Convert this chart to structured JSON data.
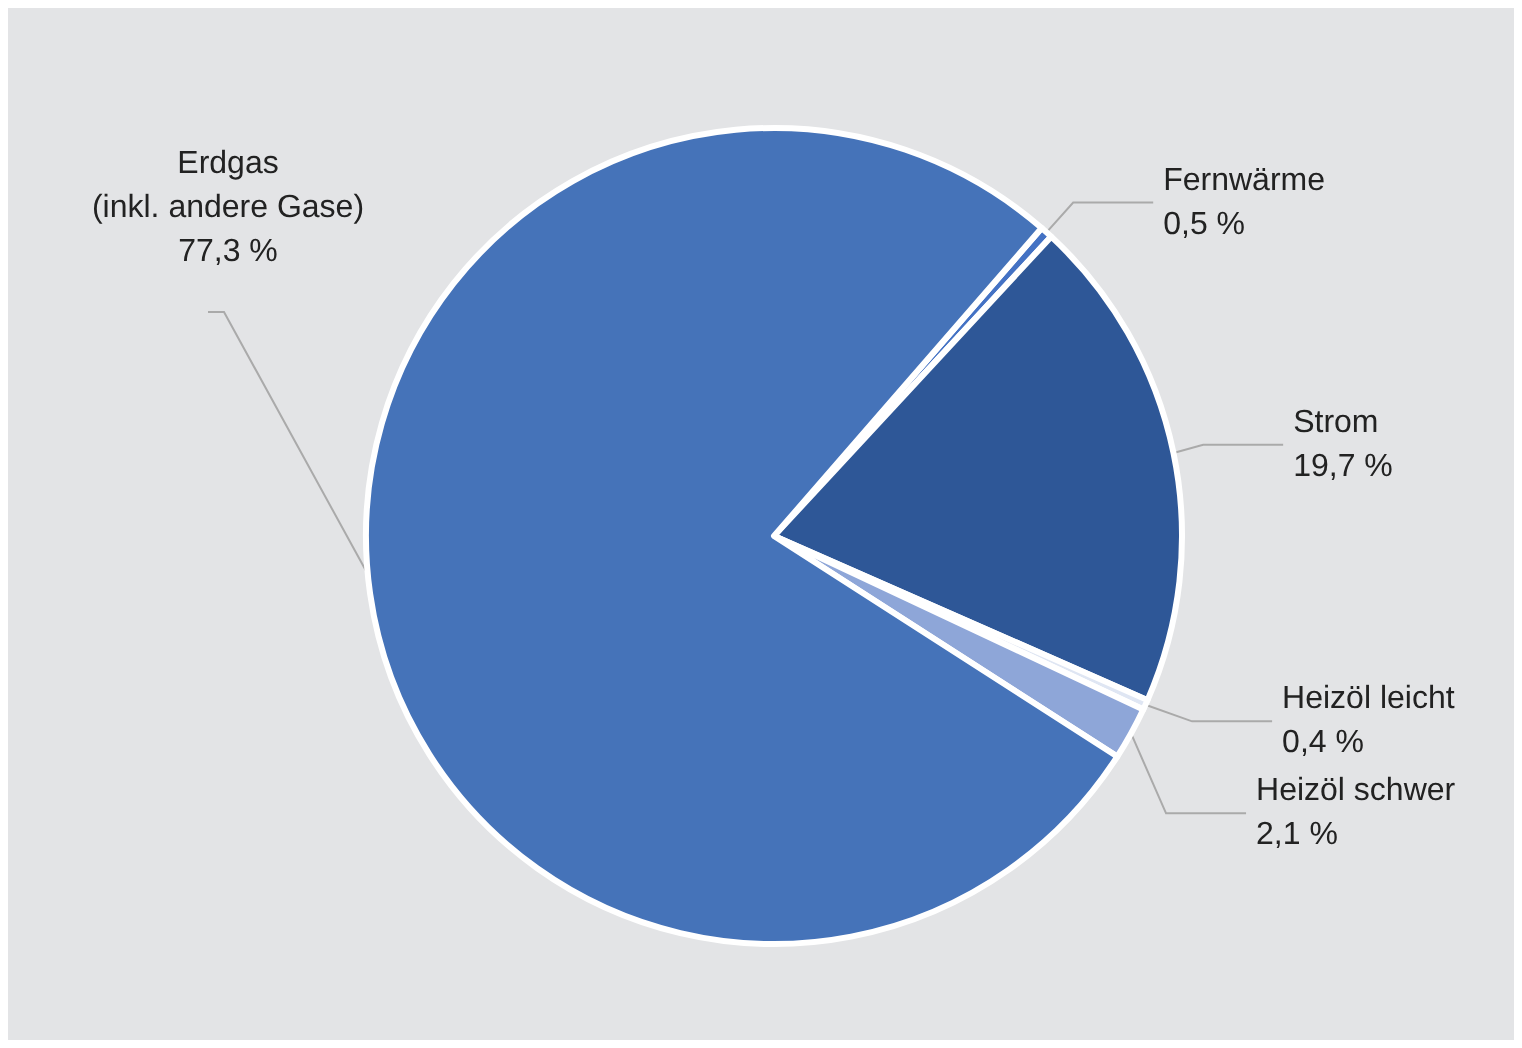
{
  "chart_data": {
    "type": "pie",
    "categories": [
      "Fernwärme",
      "Strom",
      "Heizöl leicht",
      "Heizöl schwer",
      "Erdgas (inkl. andere Gase)"
    ],
    "values": [
      0.5,
      19.7,
      0.4,
      2.1,
      77.3
    ],
    "value_labels": [
      "0,5 %",
      "19,7 %",
      "0,4 %",
      "2,1 %",
      "77,3 %"
    ],
    "colors": [
      "#4472c4",
      "#2e5797",
      "#dfe6f3",
      "#8ea6d8",
      "#4573b9"
    ],
    "legend": false
  }
}
